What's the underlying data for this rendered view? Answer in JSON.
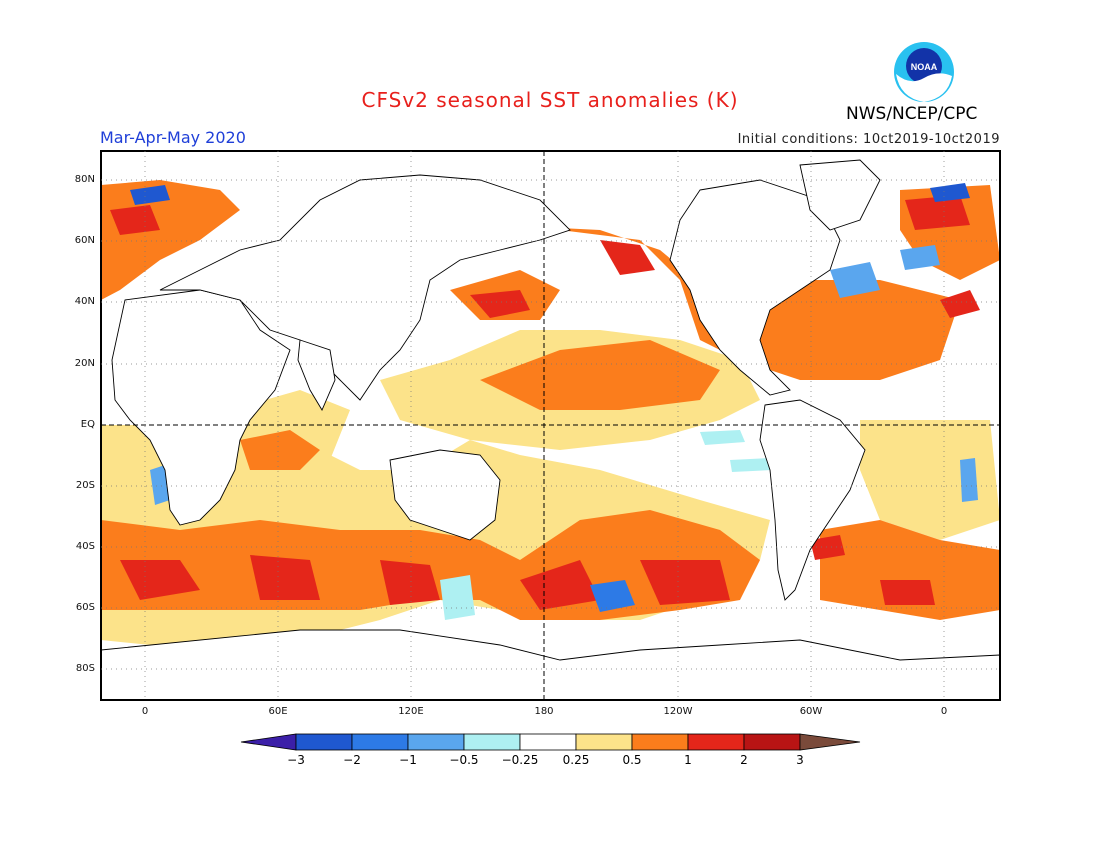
{
  "title": "CFSv2 seasonal SST anomalies (K)",
  "season": "Mar-Apr-May 2020",
  "initial_conditions": "Initial conditions: 10ct2019-10ct2019",
  "agency": "NWS/NCEP/CPC",
  "logo_text": "NOAA",
  "lat_labels": [
    "80N",
    "60N",
    "40N",
    "20N",
    "EQ",
    "20S",
    "40S",
    "60S",
    "80S"
  ],
  "lon_labels": [
    "0",
    "60E",
    "120E",
    "180",
    "120W",
    "60W",
    "0"
  ],
  "colorbar": {
    "labels": [
      "-3",
      "-2",
      "-1",
      "-0.5",
      "-0.25",
      "0.25",
      "0.5",
      "1",
      "2",
      "3"
    ],
    "colors": [
      "#3b1fa8",
      "#1f58d0",
      "#2d7ae6",
      "#5aa6ee",
      "#aef0f2",
      "#ffffff",
      "#fce38a",
      "#fb7d1c",
      "#e4261a",
      "#b81414",
      "#7a4a3a"
    ]
  }
}
